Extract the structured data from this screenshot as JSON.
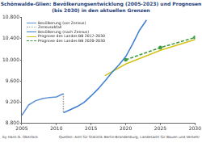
{
  "chart_data": {
    "type": "line",
    "title": "Schönwalde-Glien: Bevölkerungsentwicklung (2005-2023) und Prognosen (bis 2030) in den aktuellen Grenzen",
    "source": "Quellen: Amt für Statistik Berlin-Brandenburg, Landesamt für Bauen und Verkehr",
    "author": "by Hans G. Oberlack",
    "xlim": [
      2005,
      2030
    ],
    "xticks": [
      2005,
      2010,
      2015,
      2020,
      2025,
      2030
    ],
    "ylim": [
      8800,
      10800
    ],
    "yticks": [
      {
        "value": 8800,
        "label": "8.800"
      },
      {
        "value": 9200,
        "label": "9.200"
      },
      {
        "value": 9600,
        "label": "9.600"
      },
      {
        "value": 10000,
        "label": "10.000"
      },
      {
        "value": 10400,
        "label": "10.400"
      },
      {
        "value": 10800,
        "label": "10.800"
      }
    ],
    "grid": false,
    "legend": "upper left",
    "series": [
      {
        "name": "Bevölkerung (vor Zensus)",
        "color": "#5b8fd6",
        "line_style": "solid",
        "marker": "none",
        "x": [
          2005,
          2006,
          2007,
          2008,
          2009,
          2010,
          2011
        ],
        "values": [
          8950,
          9150,
          9230,
          9270,
          9290,
          9300,
          9360
        ]
      },
      {
        "name": "Zensusabfall",
        "color": "#9a9a9a",
        "line_style": "dotted",
        "marker": "none",
        "x": [
          2011,
          2011
        ],
        "values": [
          9360,
          9000
        ]
      },
      {
        "name": "Bevölkerung (nach Zensus)",
        "color": "#3a7fd0",
        "line_style": "solid",
        "marker": "none",
        "x": [
          2011,
          2012,
          2013,
          2014,
          2015,
          2016,
          2017,
          2018,
          2019,
          2020,
          2021,
          2022,
          2023
        ],
        "values": [
          9000,
          9060,
          9120,
          9200,
          9320,
          9450,
          9600,
          9760,
          9900,
          10060,
          10300,
          10560,
          10750
        ]
      },
      {
        "name": "Prognose des Landes BB 2017-2030",
        "color": "#d4c21a",
        "line_style": "solid",
        "marker": "none",
        "x": [
          2017,
          2020,
          2025,
          2030
        ],
        "values": [
          9700,
          9920,
          10180,
          10380
        ]
      },
      {
        "name": "Prognose des Landes BB 2020-2030",
        "color": "#3c9a3c",
        "line_style": "dashed",
        "marker": "circle",
        "x": [
          2020,
          2025,
          2030
        ],
        "values": [
          10000,
          10230,
          10420
        ]
      }
    ]
  }
}
